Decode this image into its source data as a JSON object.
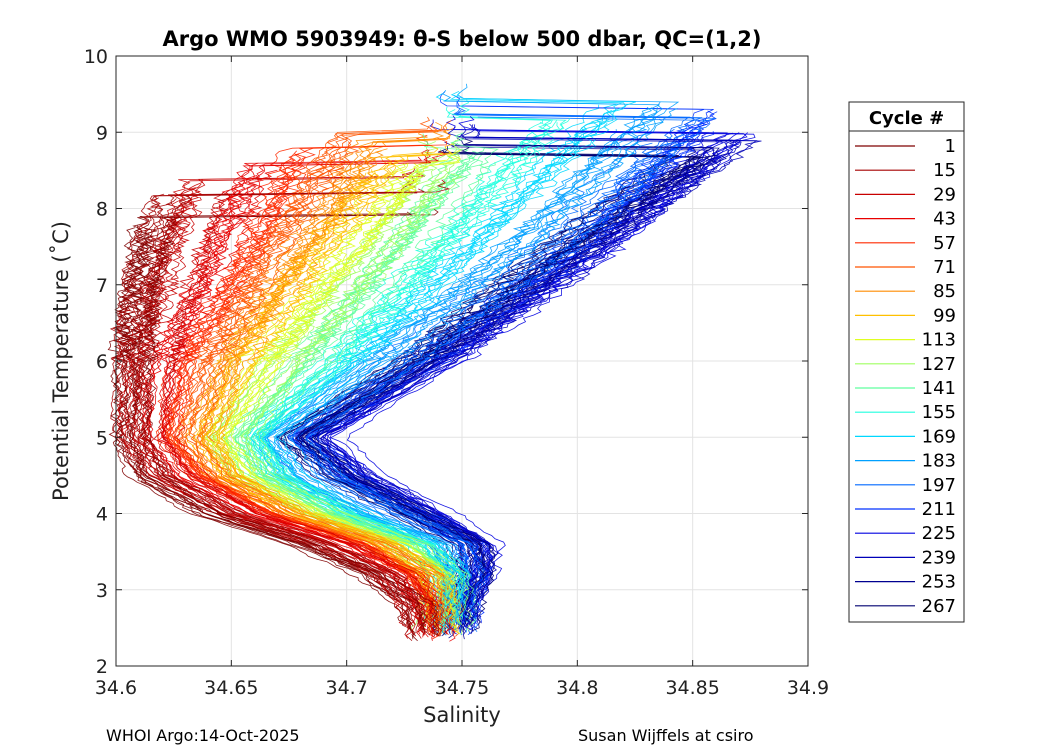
{
  "chart_data": {
    "type": "line",
    "title": "Argo WMO 5903949: θ-S below 500 dbar,  QC=(1,2)",
    "xlabel": "Salinity",
    "ylabel": "Potential Temperature (˚C)",
    "xlim": [
      34.6,
      34.9
    ],
    "ylim": [
      2,
      10
    ],
    "xticks": [
      "34.6",
      "34.65",
      "34.7",
      "34.75",
      "34.8",
      "34.85",
      "34.9"
    ],
    "yticks": [
      "2",
      "3",
      "4",
      "5",
      "6",
      "7",
      "8",
      "9",
      "10"
    ],
    "grid": true,
    "legend": {
      "title": "Cycle #",
      "placement": "right-outside",
      "entries": [
        "1",
        "15",
        "29",
        "43",
        "57",
        "71",
        "85",
        "99",
        "113",
        "127",
        "141",
        "155",
        "169",
        "183",
        "197",
        "211",
        "225",
        "239",
        "253",
        "267"
      ],
      "colors": [
        "#7f0000",
        "#a50000",
        "#c80000",
        "#e80000",
        "#ff2a00",
        "#ff5500",
        "#ff8c00",
        "#ffc000",
        "#dfff20",
        "#9fff60",
        "#5fff9f",
        "#20ffdf",
        "#00d8ff",
        "#00a0ff",
        "#0068ff",
        "#0030ff",
        "#0000e0",
        "#0000b8",
        "#000090",
        "#000070"
      ]
    },
    "series": [
      {
        "name": "1",
        "s": [
          34.616,
          34.611,
          34.607,
          34.606,
          34.612,
          34.64,
          34.68,
          34.71,
          34.729,
          34.733
        ],
        "theta": [
          7.9,
          7.0,
          6.0,
          5.0,
          4.5,
          4.0,
          3.6,
          3.2,
          2.8,
          2.3
        ]
      },
      {
        "name": "15",
        "s": [
          34.625,
          34.612,
          34.608,
          34.61,
          34.62,
          34.65,
          34.69,
          34.718,
          34.731,
          34.735
        ],
        "theta": [
          8.2,
          7.0,
          6.0,
          5.0,
          4.5,
          4.0,
          3.6,
          3.2,
          2.8,
          2.3
        ]
      },
      {
        "name": "29",
        "s": [
          34.64,
          34.625,
          34.615,
          34.612,
          34.625,
          34.655,
          34.695,
          34.722,
          34.733,
          34.736
        ],
        "theta": [
          8.4,
          7.0,
          6.0,
          5.0,
          4.5,
          4.0,
          3.6,
          3.2,
          2.8,
          2.3
        ]
      },
      {
        "name": "43",
        "s": [
          34.66,
          34.64,
          34.622,
          34.618,
          34.63,
          34.66,
          34.7,
          34.725,
          34.735,
          34.737
        ],
        "theta": [
          8.6,
          7.2,
          6.0,
          5.0,
          4.5,
          4.0,
          3.6,
          3.2,
          2.8,
          2.3
        ]
      },
      {
        "name": "57",
        "s": [
          34.68,
          34.655,
          34.63,
          34.622,
          34.635,
          34.665,
          34.705,
          34.728,
          34.737,
          34.738
        ],
        "theta": [
          8.8,
          7.3,
          6.0,
          5.0,
          4.5,
          4.0,
          3.6,
          3.2,
          2.8,
          2.35
        ]
      },
      {
        "name": "71",
        "s": [
          34.7,
          34.668,
          34.64,
          34.628,
          34.64,
          34.67,
          34.71,
          34.732,
          34.739,
          34.739
        ],
        "theta": [
          9.0,
          7.5,
          6.0,
          5.0,
          4.5,
          4.0,
          3.6,
          3.2,
          2.8,
          2.35
        ]
      },
      {
        "name": "85",
        "s": [
          34.71,
          34.68,
          34.648,
          34.635,
          34.645,
          34.675,
          34.714,
          34.735,
          34.74,
          34.74
        ],
        "theta": [
          8.9,
          7.5,
          6.0,
          5.0,
          4.5,
          4.0,
          3.6,
          3.2,
          2.8,
          2.4
        ]
      },
      {
        "name": "99",
        "s": [
          34.72,
          34.69,
          34.655,
          34.64,
          34.65,
          34.68,
          34.718,
          34.738,
          34.741,
          34.741
        ],
        "theta": [
          8.7,
          7.5,
          6.0,
          5.0,
          4.5,
          4.0,
          3.6,
          3.2,
          2.8,
          2.4
        ]
      },
      {
        "name": "113",
        "s": [
          34.73,
          34.7,
          34.665,
          34.645,
          34.655,
          34.685,
          34.722,
          34.74,
          34.742,
          34.742
        ],
        "theta": [
          8.6,
          7.4,
          6.0,
          5.0,
          4.5,
          4.0,
          3.6,
          3.2,
          2.8,
          2.4
        ]
      },
      {
        "name": "127",
        "s": [
          34.745,
          34.71,
          34.675,
          34.65,
          34.66,
          34.69,
          34.726,
          34.742,
          34.743,
          34.743
        ],
        "theta": [
          8.7,
          7.3,
          6.0,
          5.0,
          4.5,
          4.0,
          3.6,
          3.2,
          2.8,
          2.4
        ]
      },
      {
        "name": "141",
        "s": [
          34.76,
          34.72,
          34.685,
          34.655,
          34.665,
          34.695,
          34.73,
          34.744,
          34.744,
          34.744
        ],
        "theta": [
          8.8,
          7.3,
          6.0,
          5.0,
          4.5,
          4.0,
          3.6,
          3.2,
          2.8,
          2.4
        ]
      },
      {
        "name": "155",
        "s": [
          34.79,
          34.74,
          34.695,
          34.66,
          34.67,
          34.7,
          34.734,
          34.746,
          34.745,
          34.745
        ],
        "theta": [
          9.2,
          7.5,
          6.0,
          5.0,
          4.5,
          4.0,
          3.6,
          3.2,
          2.8,
          2.4
        ]
      },
      {
        "name": "169",
        "s": [
          34.82,
          34.76,
          34.705,
          34.665,
          34.675,
          34.705,
          34.738,
          34.748,
          34.746,
          34.746
        ],
        "theta": [
          9.4,
          7.6,
          6.0,
          5.0,
          4.5,
          4.0,
          3.6,
          3.2,
          2.8,
          2.4
        ]
      },
      {
        "name": "183",
        "s": [
          34.84,
          34.78,
          34.715,
          34.67,
          34.68,
          34.71,
          34.742,
          34.75,
          34.747,
          34.747
        ],
        "theta": [
          9.4,
          7.6,
          6.0,
          5.0,
          4.5,
          4.0,
          3.6,
          3.2,
          2.8,
          2.4
        ]
      },
      {
        "name": "197",
        "s": [
          34.85,
          34.79,
          34.725,
          34.675,
          34.69,
          34.72,
          34.748,
          34.752,
          34.748,
          34.748
        ],
        "theta": [
          9.2,
          7.5,
          6.0,
          5.0,
          4.5,
          4.0,
          3.6,
          3.2,
          2.8,
          2.4
        ]
      },
      {
        "name": "211",
        "s": [
          34.86,
          34.8,
          34.735,
          34.68,
          34.7,
          34.73,
          34.755,
          34.756,
          34.75,
          34.749
        ],
        "theta": [
          9.3,
          7.5,
          6.0,
          5.0,
          4.5,
          4.0,
          3.6,
          3.2,
          2.8,
          2.4
        ]
      },
      {
        "name": "225",
        "s": [
          34.87,
          34.81,
          34.745,
          34.69,
          34.71,
          34.74,
          34.762,
          34.76,
          34.752,
          34.75
        ],
        "theta": [
          9.0,
          7.4,
          6.0,
          5.0,
          4.5,
          4.0,
          3.6,
          3.2,
          2.8,
          2.4
        ]
      },
      {
        "name": "239",
        "s": [
          34.872,
          34.8,
          34.74,
          34.685,
          34.705,
          34.735,
          34.758,
          34.758,
          34.751,
          34.75
        ],
        "theta": [
          8.9,
          7.3,
          6.0,
          5.0,
          4.5,
          4.0,
          3.6,
          3.2,
          2.8,
          2.35
        ]
      },
      {
        "name": "253",
        "s": [
          34.86,
          34.79,
          34.735,
          34.68,
          34.7,
          34.732,
          34.756,
          34.757,
          34.75,
          34.749
        ],
        "theta": [
          8.8,
          7.2,
          6.0,
          5.0,
          4.5,
          4.0,
          3.6,
          3.2,
          2.8,
          2.35
        ]
      },
      {
        "name": "267",
        "s": [
          34.85,
          34.78,
          34.73,
          34.678,
          34.698,
          34.73,
          34.754,
          34.756,
          34.749,
          34.748
        ],
        "theta": [
          8.7,
          7.2,
          6.0,
          5.0,
          4.5,
          4.0,
          3.6,
          3.2,
          2.8,
          2.35
        ]
      }
    ]
  },
  "footer": {
    "left": "WHOI Argo:14-Oct-2025",
    "right": "Susan Wijffels at csiro"
  }
}
